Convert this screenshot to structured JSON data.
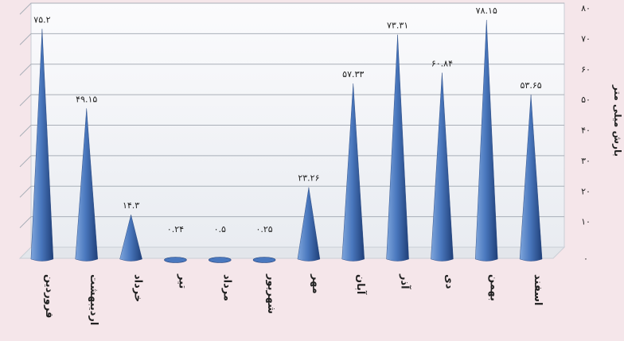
{
  "chart_data": {
    "type": "bar",
    "bar_shape": "cone",
    "title": "",
    "xlabel": "",
    "ylabel": "بارش میلی متر",
    "ylim": [
      0,
      80
    ],
    "yticks": [
      0,
      10,
      20,
      30,
      40,
      50,
      60,
      70,
      80
    ],
    "ytick_labels": [
      "۰",
      "۱۰",
      "۲۰",
      "۳۰",
      "۴۰",
      "۵۰",
      "۶۰",
      "۷۰",
      "۸۰"
    ],
    "yaxis_position": "right",
    "grid": true,
    "categories": [
      "فروردین",
      "اردیبهشت",
      "خرداد",
      "تیر",
      "مرداد",
      "شهریور",
      "مهر",
      "آبان",
      "آذر",
      "دی",
      "بهمن",
      "اسفند"
    ],
    "values": [
      75.2,
      49.15,
      14.3,
      0.24,
      0.5,
      0.25,
      23.26,
      57.33,
      73.31,
      60.84,
      78.15,
      53.65
    ],
    "value_labels": [
      "۷۵.۲",
      "۴۹.۱۵",
      "۱۴.۳",
      "۰.۲۴",
      "۰.۵",
      "۰.۲۵",
      "۲۳.۲۶",
      "۵۷.۳۳",
      "۷۳.۳۱",
      "۶۰.۸۴",
      "۷۸.۱۵",
      "۵۳.۶۵"
    ],
    "colors": {
      "background": "#f5e6ea",
      "wall": "#f4f5f7",
      "bar_light": "#7fa6dc",
      "bar_mid": "#4a78be",
      "bar_dark": "#1f3f78",
      "grid": "#a9afb8",
      "text": "#222222"
    }
  }
}
